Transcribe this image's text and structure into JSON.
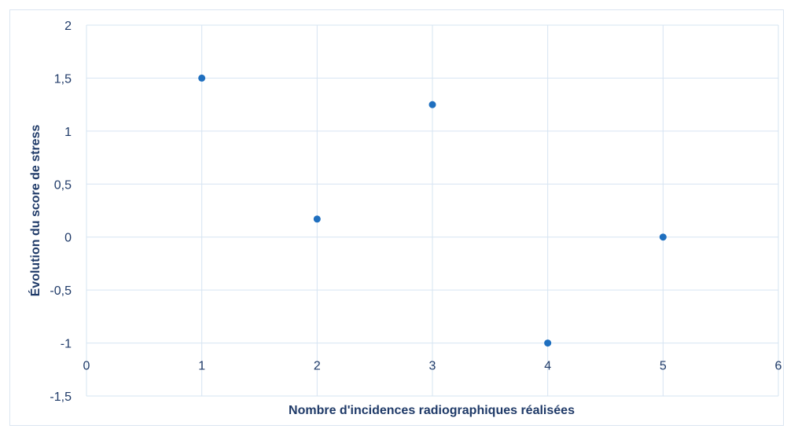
{
  "chart_data": {
    "type": "scatter",
    "title": "",
    "xlabel": "Nombre d'incidences radiographiques réalisées",
    "ylabel": "Évolution du score de stress",
    "xlim": [
      0,
      6
    ],
    "ylim": [
      -1.5,
      2
    ],
    "x_ticks": [
      "0",
      "1",
      "2",
      "3",
      "4",
      "5",
      "6"
    ],
    "y_ticks": [
      "2",
      "1,5",
      "1",
      "0,5",
      "0",
      "-0,5",
      "-1",
      "-1,5"
    ],
    "grid": true,
    "series": [
      {
        "color": "#1f6fbf",
        "points": [
          {
            "x": 1,
            "y": 1.5
          },
          {
            "x": 2,
            "y": 0.17
          },
          {
            "x": 3,
            "y": 1.25
          },
          {
            "x": 4,
            "y": -1
          },
          {
            "x": 5,
            "y": 0
          }
        ]
      }
    ],
    "grid_color": "#d6e4f2"
  }
}
